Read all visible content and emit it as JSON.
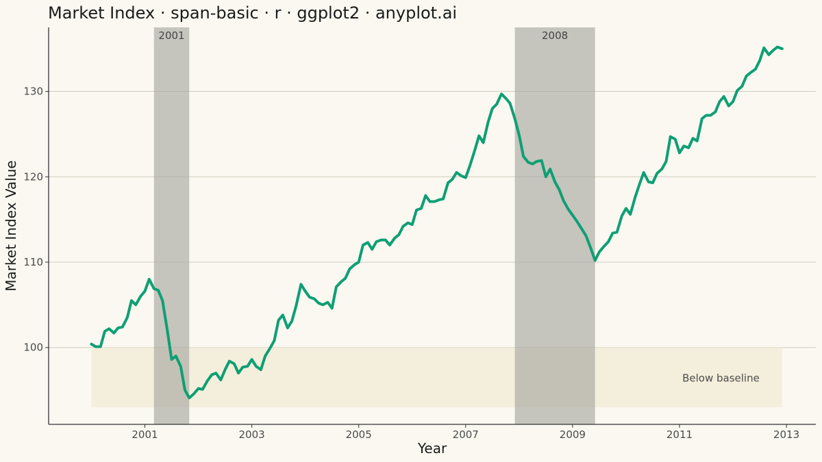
{
  "chart_data": {
    "type": "line",
    "title": "Market Index · span-basic · r · ggplot2 · anyplot.ai",
    "xlabel": "Year",
    "ylabel": "Market Index Value",
    "xlim": [
      1999.2,
      2013.55
    ],
    "ylim": [
      91.0,
      137.5
    ],
    "x_ticks": [
      2001,
      2003,
      2005,
      2007,
      2009,
      2011,
      2013
    ],
    "y_ticks": [
      100,
      110,
      120,
      130
    ],
    "grid": "horizontal-major",
    "line_color": "#0E9F73",
    "spans": [
      {
        "label": "2001",
        "x_start": 2001.17,
        "x_end": 2001.83,
        "color": "#BDBCB5"
      },
      {
        "label": "2008",
        "x_start": 2007.92,
        "x_end": 2009.42,
        "color": "#BDBCB5"
      }
    ],
    "band": {
      "label": "Below baseline",
      "x_start": 2000.0,
      "x_end": 2012.92,
      "y_start": 93.0,
      "y_end": 100.0,
      "color": "#F2EDD8"
    },
    "series": [
      {
        "x": [
          2000.0,
          2000.08,
          2000.17,
          2000.25,
          2000.33,
          2000.42,
          2000.5,
          2000.58,
          2000.67,
          2000.75,
          2000.83,
          2000.92,
          2001.0,
          2001.08,
          2001.17,
          2001.25,
          2001.33,
          2001.42,
          2001.5,
          2001.58,
          2001.67,
          2001.75,
          2001.83,
          2001.92,
          2002.0,
          2002.08,
          2002.17,
          2002.25,
          2002.33,
          2002.42,
          2002.5,
          2002.58,
          2002.67,
          2002.75,
          2002.83,
          2002.92,
          2003.0,
          2003.08,
          2003.17,
          2003.25,
          2003.33,
          2003.42,
          2003.5,
          2003.58,
          2003.67,
          2003.75,
          2003.83,
          2003.92,
          2004.0,
          2004.08,
          2004.17,
          2004.25,
          2004.33,
          2004.42,
          2004.5,
          2004.58,
          2004.67,
          2004.75,
          2004.83,
          2004.92,
          2005.0,
          2005.08,
          2005.17,
          2005.25,
          2005.33,
          2005.42,
          2005.5,
          2005.58,
          2005.67,
          2005.75,
          2005.83,
          2005.92,
          2006.0,
          2006.08,
          2006.17,
          2006.25,
          2006.33,
          2006.42,
          2006.5,
          2006.58,
          2006.67,
          2006.75,
          2006.83,
          2006.92,
          2007.0,
          2007.08,
          2007.17,
          2007.25,
          2007.33,
          2007.42,
          2007.5,
          2007.58,
          2007.67,
          2007.75,
          2007.83,
          2007.92,
          2008.0,
          2008.08,
          2008.17,
          2008.25,
          2008.33,
          2008.42,
          2008.5,
          2008.58,
          2008.67,
          2008.75,
          2008.83,
          2008.92,
          2009.0,
          2009.08,
          2009.17,
          2009.25,
          2009.33,
          2009.42,
          2009.5,
          2009.58,
          2009.67,
          2009.75,
          2009.83,
          2009.92,
          2010.0,
          2010.08,
          2010.17,
          2010.25,
          2010.33,
          2010.42,
          2010.5,
          2010.58,
          2010.67,
          2010.75,
          2010.83,
          2010.92,
          2011.0,
          2011.08,
          2011.17,
          2011.25,
          2011.33,
          2011.42,
          2011.5,
          2011.58,
          2011.67,
          2011.75,
          2011.83,
          2011.92,
          2012.0,
          2012.08,
          2012.17,
          2012.25,
          2012.33,
          2012.42,
          2012.5,
          2012.58,
          2012.67,
          2012.75,
          2012.83,
          2012.92
        ],
        "values": [
          100.4,
          100.1,
          100.1,
          101.9,
          102.2,
          101.7,
          102.3,
          102.4,
          103.5,
          105.5,
          105.0,
          106.0,
          106.6,
          108.0,
          106.9,
          106.7,
          105.5,
          102.0,
          98.6,
          99.0,
          97.8,
          95.0,
          94.1,
          94.6,
          95.2,
          95.1,
          96.1,
          96.8,
          97.0,
          96.2,
          97.4,
          98.4,
          98.1,
          97.0,
          97.7,
          97.8,
          98.6,
          97.8,
          97.4,
          99.0,
          99.8,
          100.8,
          103.2,
          103.8,
          102.3,
          103.1,
          104.9,
          107.4,
          106.6,
          105.9,
          105.7,
          105.2,
          105.0,
          105.3,
          104.6,
          107.1,
          107.7,
          108.1,
          109.2,
          109.7,
          110.0,
          112.0,
          112.3,
          111.5,
          112.4,
          112.6,
          112.6,
          112.0,
          112.8,
          113.2,
          114.2,
          114.6,
          114.4,
          116.1,
          116.3,
          117.8,
          117.1,
          117.1,
          117.3,
          117.4,
          119.3,
          119.7,
          120.5,
          120.1,
          119.9,
          121.3,
          123.1,
          124.8,
          124.0,
          126.4,
          128.0,
          128.5,
          129.7,
          129.2,
          128.6,
          126.8,
          124.9,
          122.4,
          121.7,
          121.5,
          121.8,
          121.9,
          120.0,
          120.9,
          119.4,
          118.5,
          117.2,
          116.2,
          115.5,
          114.8,
          113.9,
          113.1,
          111.8,
          110.2,
          111.2,
          111.8,
          112.4,
          113.4,
          113.5,
          115.4,
          116.3,
          115.6,
          117.6,
          119.1,
          120.5,
          119.4,
          119.3,
          120.4,
          120.9,
          121.8,
          124.7,
          124.4,
          122.8,
          123.6,
          123.4,
          124.5,
          124.2,
          126.8,
          127.2,
          127.2,
          127.6,
          128.8,
          129.4,
          128.3,
          128.8,
          130.1,
          130.6,
          131.8,
          132.2,
          132.6,
          133.6,
          135.1,
          134.3,
          134.8,
          135.2,
          135.0
        ]
      }
    ]
  }
}
